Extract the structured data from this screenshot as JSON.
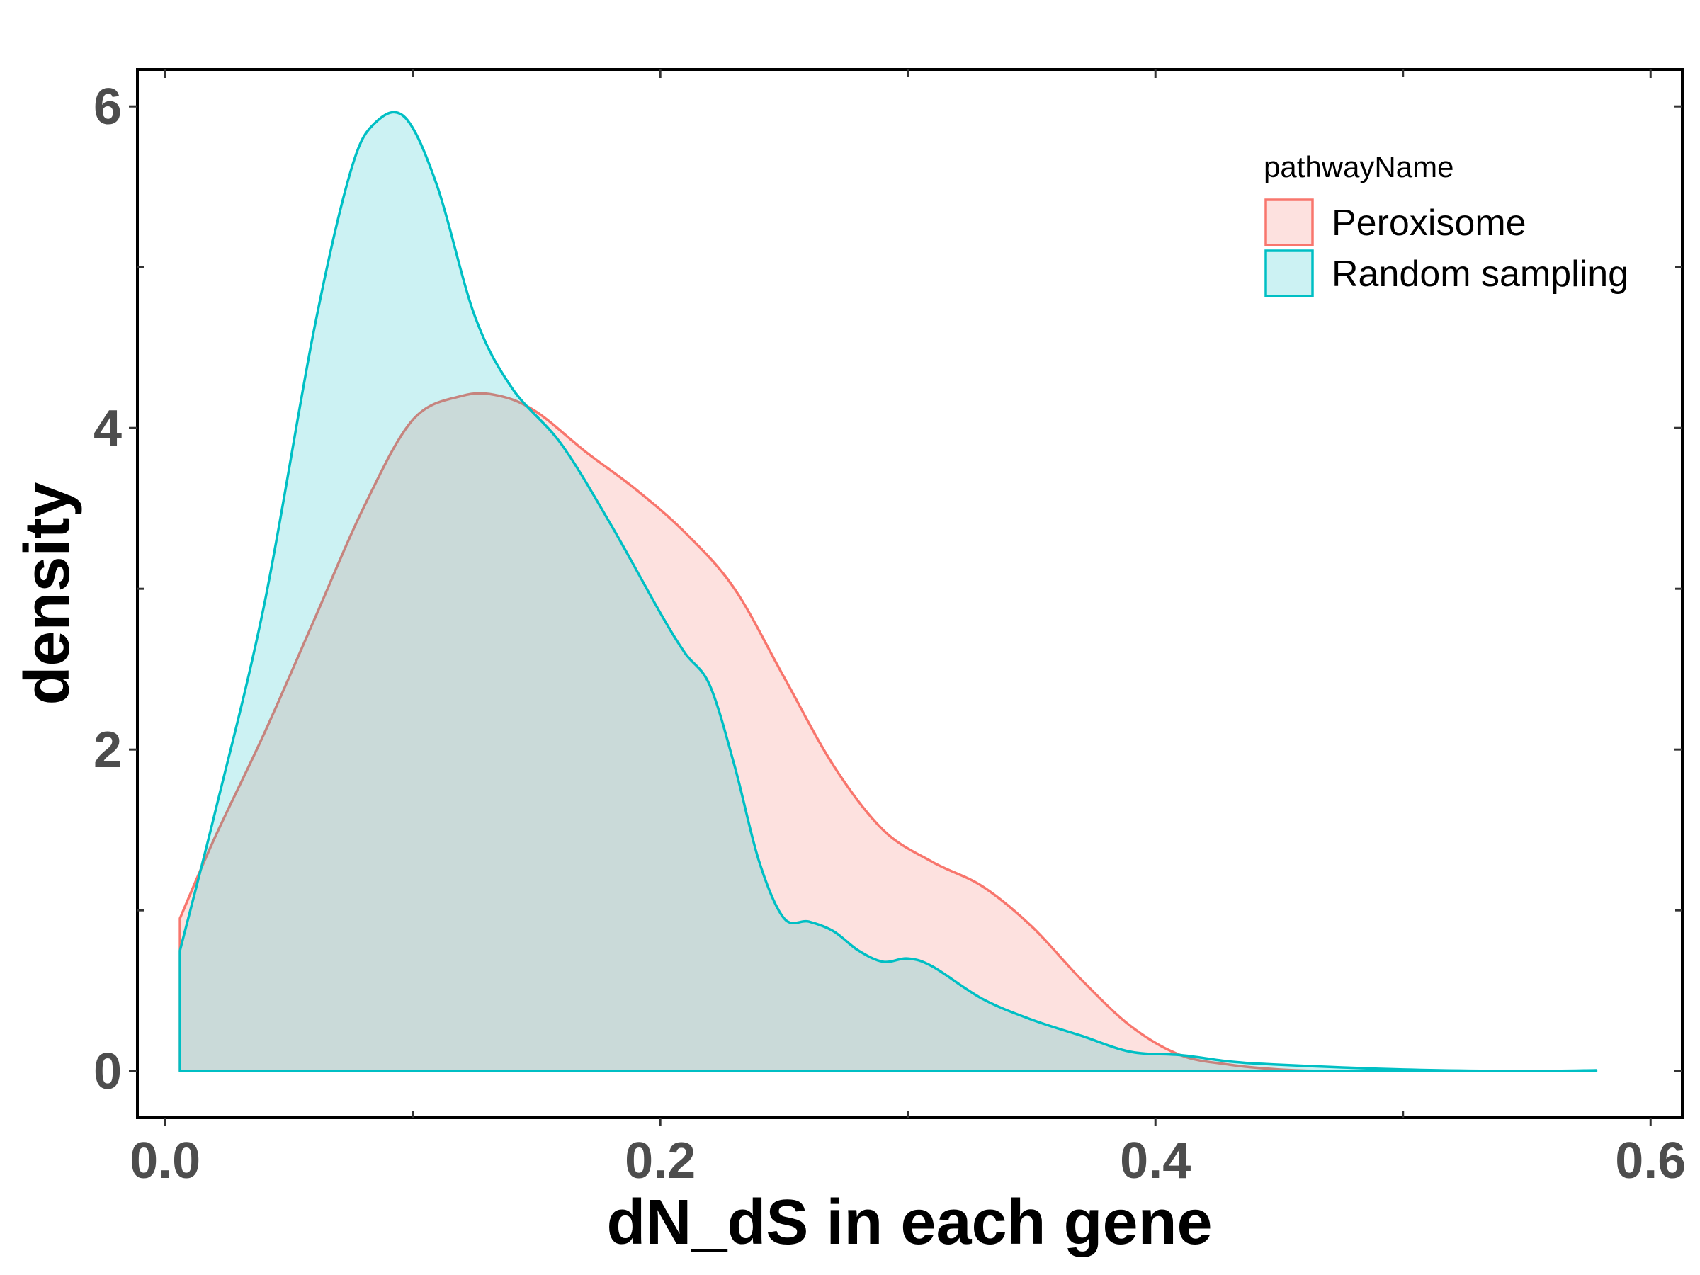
{
  "chart_data": {
    "type": "area",
    "xlabel": "dN_dS in each gene",
    "ylabel": "density",
    "xlim": [
      -0.0112,
      0.6128
    ],
    "ylim": [
      -0.29,
      6.23
    ],
    "x_ticks": [
      0.0,
      0.2,
      0.4,
      0.6
    ],
    "x_tick_labels": [
      "0.0",
      "0.2",
      "0.4",
      "0.6"
    ],
    "y_ticks": [
      0,
      2,
      4,
      6
    ],
    "y_tick_labels": [
      "0",
      "2",
      "4",
      "6"
    ],
    "grid": false,
    "legend": {
      "title": "pathwayName",
      "position": "top-right"
    },
    "series": [
      {
        "name": "Peroxisome",
        "color": "#F8766D",
        "fill": "rgba(248,118,109,0.22)",
        "x": [
          0.006,
          0.02,
          0.04,
          0.06,
          0.08,
          0.1,
          0.12,
          0.135,
          0.15,
          0.17,
          0.19,
          0.21,
          0.23,
          0.25,
          0.27,
          0.29,
          0.31,
          0.33,
          0.35,
          0.37,
          0.39,
          0.41,
          0.43,
          0.45,
          0.47,
          0.5
        ],
        "y": [
          0.95,
          1.45,
          2.1,
          2.8,
          3.5,
          4.05,
          4.2,
          4.2,
          4.1,
          3.85,
          3.62,
          3.35,
          3.0,
          2.45,
          1.9,
          1.5,
          1.3,
          1.15,
          0.9,
          0.57,
          0.28,
          0.1,
          0.04,
          0.01,
          0.0,
          0.0
        ]
      },
      {
        "name": "Random sampling",
        "color": "#00BFC4",
        "fill": "rgba(0,191,196,0.20)",
        "x": [
          0.006,
          0.02,
          0.04,
          0.06,
          0.075,
          0.085,
          0.097,
          0.11,
          0.125,
          0.14,
          0.16,
          0.18,
          0.2,
          0.21,
          0.22,
          0.23,
          0.24,
          0.25,
          0.26,
          0.27,
          0.28,
          0.29,
          0.3,
          0.31,
          0.33,
          0.35,
          0.37,
          0.39,
          0.41,
          0.43,
          0.45,
          0.5,
          0.55,
          0.578
        ],
        "y": [
          0.75,
          1.6,
          2.9,
          4.6,
          5.6,
          5.9,
          5.93,
          5.5,
          4.7,
          4.25,
          3.9,
          3.4,
          2.85,
          2.6,
          2.4,
          1.9,
          1.3,
          0.95,
          0.93,
          0.87,
          0.75,
          0.68,
          0.7,
          0.65,
          0.45,
          0.32,
          0.22,
          0.12,
          0.1,
          0.06,
          0.04,
          0.01,
          0.0,
          0.005
        ]
      }
    ]
  }
}
